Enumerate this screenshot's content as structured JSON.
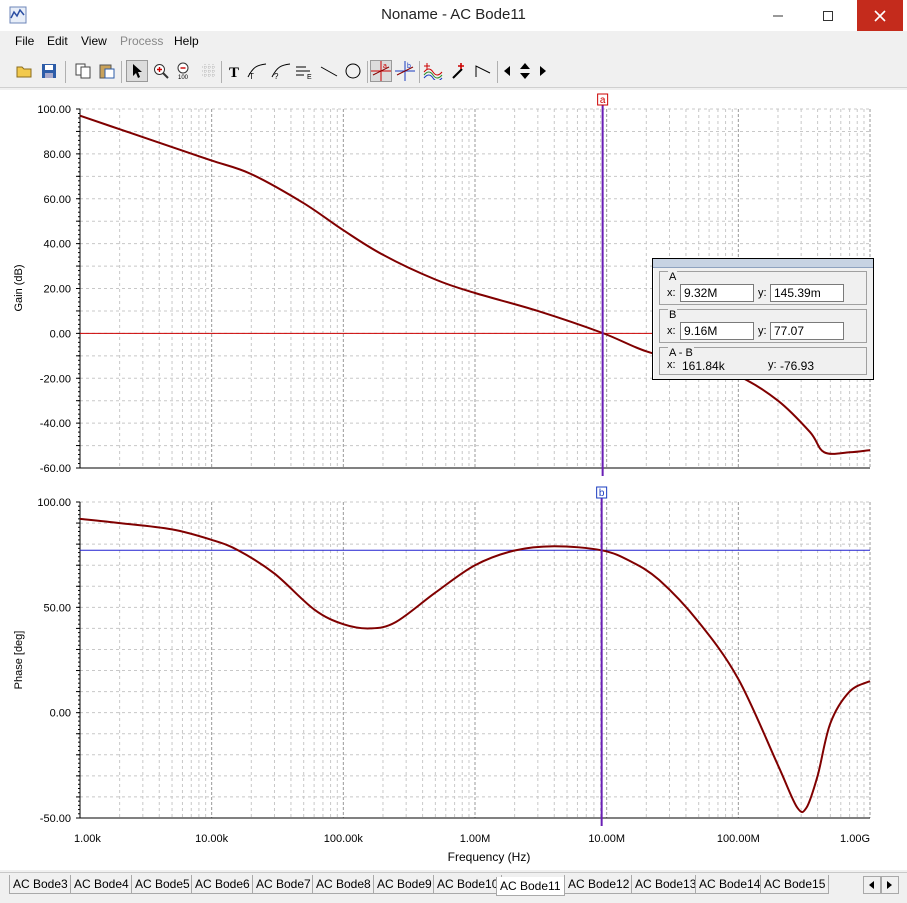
{
  "window": {
    "title": "Noname - AC Bode11"
  },
  "menu": [
    "File",
    "Edit",
    "View",
    "Process",
    "Help"
  ],
  "menu_disabled": [
    "Process"
  ],
  "toolbar": {
    "icons": [
      "open-icon",
      "save-icon",
      "copy-icon",
      "paste-icon",
      "select-arrow-icon",
      "zoom-in-icon",
      "zoom-100-icon",
      "grid-icon",
      "text-icon",
      "curve-label-icon",
      "curve-label2-icon",
      "axis-label-icon",
      "line-icon",
      "ellipse-icon",
      "cursor-a-icon",
      "cursor-b-icon",
      "waveform-icon",
      "marker-icon",
      "slope-icon",
      "arrow-left-icon",
      "arrow-updown-icon",
      "arrow-right-icon"
    ]
  },
  "chart_data": [
    {
      "type": "line",
      "title": "",
      "xlabel": "Frequency (Hz)",
      "ylabel": "Gain (dB)",
      "xscale": "log",
      "xlim": [
        1000,
        1000000000
      ],
      "ylim": [
        -60,
        100
      ],
      "yticks": [
        "100.00",
        "80.00",
        "60.00",
        "40.00",
        "20.00",
        "0.00",
        "-20.00",
        "-40.00",
        "-60.00"
      ],
      "ytick_values": [
        100,
        80,
        60,
        40,
        20,
        0,
        -20,
        -40,
        -60
      ],
      "grid": true,
      "colors": {
        "series": "#800000",
        "zero_line": "#cc0000",
        "cursor": "#6a1fb5"
      },
      "series": [
        {
          "x": [
            1000,
            2000,
            5000,
            10000,
            20000,
            50000,
            100000,
            200000,
            500000,
            1000000,
            3000000,
            9320000,
            20000000,
            50000000,
            100000000,
            200000000,
            350000000,
            450000000,
            700000000,
            1000000000
          ],
          "y": [
            97,
            91,
            83,
            77,
            71,
            58,
            46,
            35,
            24,
            18,
            10,
            0.15,
            -8,
            -14,
            -19,
            -30,
            -44,
            -53,
            -53,
            -52
          ]
        }
      ],
      "cursor": {
        "name": "a",
        "x": 9320000
      }
    },
    {
      "type": "line",
      "title": "",
      "xlabel": "Frequency (Hz)",
      "ylabel": "Phase [deg]",
      "xscale": "log",
      "xlim": [
        1000,
        1000000000
      ],
      "ylim": [
        -50,
        100
      ],
      "yticks": [
        "100.00",
        "50.00",
        "0.00",
        "-50.00"
      ],
      "ytick_values": [
        100,
        50,
        0,
        -50
      ],
      "xticks": [
        "1.00k",
        "10.00k",
        "100.00k",
        "1.00M",
        "10.00M",
        "100.00M",
        "1.00G"
      ],
      "xtick_values": [
        1000,
        10000,
        100000,
        1000000,
        10000000,
        100000000,
        1000000000
      ],
      "grid": true,
      "colors": {
        "series": "#800000",
        "hline": "#2020d0",
        "cursor": "#6a1fb5"
      },
      "hline": 77.07,
      "series": [
        {
          "x": [
            1000,
            2000,
            5000,
            10000,
            16000,
            30000,
            60000,
            100000,
            160000,
            250000,
            500000,
            1000000,
            2000000,
            4000000,
            9160000,
            15000000,
            25000000,
            50000000,
            100000000,
            200000000,
            280000000,
            330000000,
            400000000,
            500000000,
            700000000,
            1000000000
          ],
          "y": [
            92,
            90,
            87,
            82,
            77,
            66,
            49,
            42,
            40,
            43,
            57,
            70,
            77,
            79,
            77.07,
            72,
            63,
            43,
            16,
            -25,
            -45,
            -45,
            -30,
            -5,
            10,
            15
          ]
        }
      ],
      "cursor": {
        "name": "b",
        "x": 9160000
      }
    }
  ],
  "cursor_panel": {
    "a": {
      "title": "A",
      "x_label": "x:",
      "x": "9.32M",
      "y_label": "y:",
      "y": "145.39m"
    },
    "b": {
      "title": "B",
      "x_label": "x:",
      "x": "9.16M",
      "y_label": "y:",
      "y": "77.07"
    },
    "diff": {
      "title": "A - B",
      "x_label": "x:",
      "x": "161.84k",
      "y_label": "y:",
      "y": "-76.93"
    }
  },
  "tabs": [
    "AC Bode3",
    "AC Bode4",
    "AC Bode5",
    "AC Bode6",
    "AC Bode7",
    "AC Bode8",
    "AC Bode9",
    "AC Bode10",
    "AC Bode11",
    "AC Bode12",
    "AC Bode13",
    "AC Bode14",
    "AC Bode15"
  ],
  "active_tab": "AC Bode11"
}
